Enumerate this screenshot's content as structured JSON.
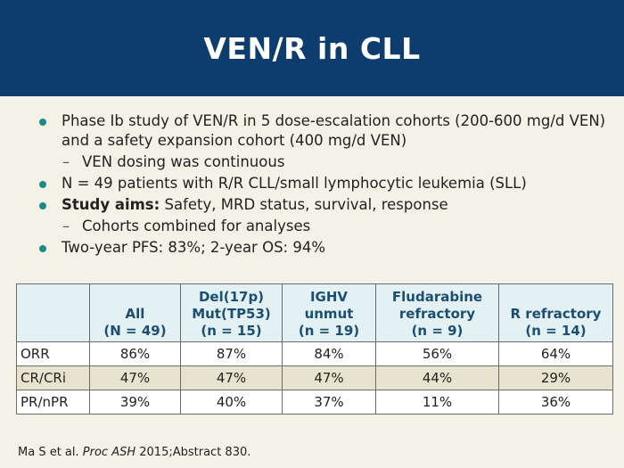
{
  "title": "VEN/R in CLL",
  "bullets": [
    {
      "text": "Phase Ib study of VEN/R in 5 dose-escalation cohorts (200-600 mg/d VEN) and a safety expansion cohort (400 mg/d VEN)"
    },
    {
      "sub": "VEN dosing was continuous"
    },
    {
      "text": "N = 49 patients with R/R CLL/small lymphocytic leukemia (SLL)"
    },
    {
      "bold": "Study aims:",
      "text": " Safety, MRD status, survival, response"
    },
    {
      "sub": "Cohorts combined for analyses"
    },
    {
      "text": "Two-year PFS: 83%; 2-year OS: 94%"
    }
  ],
  "table": {
    "headers": [
      [
        "",
        ""
      ],
      [
        "All",
        "(N = 49)"
      ],
      [
        "Del(17p)",
        "Mut(TP53)",
        "(n = 15)"
      ],
      [
        "IGHV",
        "unmut",
        "(n = 19)"
      ],
      [
        "Fludarabine",
        "refractory",
        "(n = 9)"
      ],
      [
        "R refractory",
        "(n = 14)"
      ]
    ],
    "rows": [
      [
        "ORR",
        "86%",
        "87%",
        "84%",
        "56%",
        "64%"
      ],
      [
        "CR/CRi",
        "47%",
        "47%",
        "47%",
        "44%",
        "29%"
      ],
      [
        "PR/nPR",
        "39%",
        "40%",
        "37%",
        "11%",
        "36%"
      ]
    ]
  },
  "footer": {
    "prefix": "Ma S et al. ",
    "journal": "Proc ASH",
    "suffix": " 2015;Abstract 830."
  },
  "colors": {
    "title_bar": "#0d3d6e",
    "bullet": "#1a8a8a",
    "header_bg": "#e3f1f4",
    "header_text": "#1c4e73",
    "shaded_row": "#e8e3cf"
  }
}
